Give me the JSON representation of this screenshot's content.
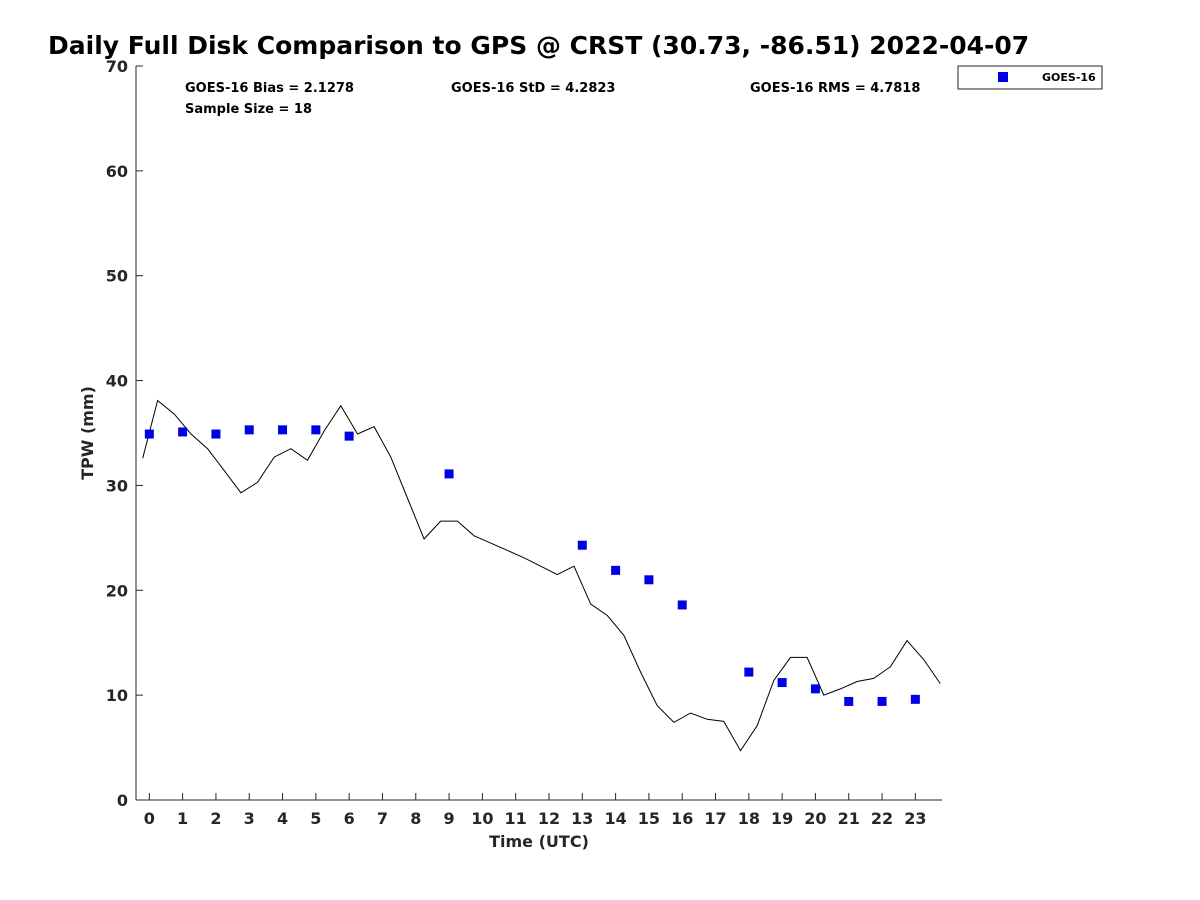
{
  "chart_data": {
    "type": "scatter",
    "title": "Daily Full Disk Comparison to GPS @ CRST (30.73, -86.51) 2022-04-07",
    "xlabel": "Time (UTC)",
    "ylabel": "TPW (mm)",
    "xlim": [
      -0.4,
      23.8
    ],
    "ylim": [
      0,
      70
    ],
    "x_ticks": [
      0,
      1,
      2,
      3,
      4,
      5,
      6,
      7,
      8,
      9,
      10,
      11,
      12,
      13,
      14,
      15,
      16,
      17,
      18,
      19,
      20,
      21,
      22,
      23
    ],
    "y_ticks": [
      0,
      10,
      20,
      30,
      40,
      50,
      60,
      70
    ],
    "grid": false,
    "legend_position": "top-right",
    "stats": {
      "bias": "GOES-16 Bias = 2.1278",
      "std": "GOES-16 StD = 4.2823",
      "rms": "GOES-16 RMS = 4.7818",
      "sample": "Sample Size = 18"
    },
    "series": [
      {
        "name": "GOES-16",
        "kind": "scatter",
        "color": "#0000e6",
        "x": [
          0,
          1,
          2,
          3,
          4,
          5,
          6,
          9,
          13,
          14,
          15,
          16,
          18,
          19,
          20,
          21,
          22,
          23
        ],
        "y": [
          34.9,
          35.1,
          34.9,
          35.3,
          35.3,
          35.3,
          34.7,
          31.1,
          24.3,
          21.9,
          21.0,
          18.6,
          12.2,
          11.2,
          10.6,
          9.4,
          9.4,
          9.6
        ]
      },
      {
        "kind": "line",
        "color": "#000000",
        "x": [
          -0.2,
          0.25,
          0.75,
          1.25,
          1.75,
          2.25,
          2.75,
          3.25,
          3.75,
          4.25,
          4.75,
          5.25,
          5.75,
          6.25,
          6.75,
          7.25,
          7.75,
          8.25,
          8.75,
          9.25,
          9.75,
          10.25,
          10.75,
          11.25,
          11.75,
          12.25,
          12.75,
          13.25,
          13.75,
          14.25,
          14.75,
          15.25,
          15.75,
          16.25,
          16.75,
          17.25,
          17.75,
          18.25,
          18.75,
          19.25,
          19.75,
          20.25,
          20.75,
          21.25,
          21.75,
          22.25,
          22.75,
          23.25,
          23.75
        ],
        "y": [
          32.6,
          38.1,
          36.8,
          34.9,
          33.5,
          31.4,
          29.3,
          30.3,
          32.7,
          33.5,
          32.4,
          35.2,
          37.6,
          34.9,
          35.6,
          32.7,
          28.8,
          24.9,
          26.6,
          26.6,
          25.2,
          24.5,
          23.8,
          23.1,
          22.3,
          21.5,
          22.3,
          18.7,
          17.6,
          15.7,
          12.2,
          9.0,
          7.4,
          8.3,
          7.7,
          7.5,
          4.7,
          7.1,
          11.4,
          13.6,
          13.6,
          10.0,
          10.6,
          11.3,
          11.6,
          12.7,
          15.2,
          13.4,
          11.1
        ]
      }
    ]
  }
}
